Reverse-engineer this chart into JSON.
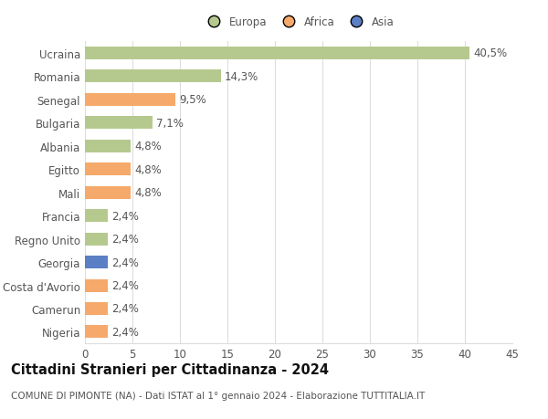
{
  "categories": [
    "Ucraina",
    "Romania",
    "Senegal",
    "Bulgaria",
    "Albania",
    "Egitto",
    "Mali",
    "Francia",
    "Regno Unito",
    "Georgia",
    "Costa d'Avorio",
    "Camerun",
    "Nigeria"
  ],
  "values": [
    40.5,
    14.3,
    9.5,
    7.1,
    4.8,
    4.8,
    4.8,
    2.4,
    2.4,
    2.4,
    2.4,
    2.4,
    2.4
  ],
  "labels": [
    "40,5%",
    "14,3%",
    "9,5%",
    "7,1%",
    "4,8%",
    "4,8%",
    "4,8%",
    "2,4%",
    "2,4%",
    "2,4%",
    "2,4%",
    "2,4%",
    "2,4%"
  ],
  "bar_colors": [
    "#b5c98e",
    "#b5c98e",
    "#f5a96a",
    "#b5c98e",
    "#b5c98e",
    "#f5a96a",
    "#f5a96a",
    "#b5c98e",
    "#b5c98e",
    "#5b7fc4",
    "#f5a96a",
    "#f5a96a",
    "#f5a96a"
  ],
  "legend_labels": [
    "Europa",
    "Africa",
    "Asia"
  ],
  "legend_colors": [
    "#b5c98e",
    "#f5a96a",
    "#5b7fc4"
  ],
  "title": "Cittadini Stranieri per Cittadinanza - 2024",
  "subtitle": "COMUNE DI PIMONTE (NA) - Dati ISTAT al 1° gennaio 2024 - Elaborazione TUTTITALIA.IT",
  "xlim": [
    0,
    45
  ],
  "xticks": [
    0,
    5,
    10,
    15,
    20,
    25,
    30,
    35,
    40,
    45
  ],
  "background_color": "#ffffff",
  "grid_color": "#dddddd",
  "bar_height": 0.55,
  "label_fontsize": 8.5,
  "tick_fontsize": 8.5,
  "title_fontsize": 10.5,
  "subtitle_fontsize": 7.5
}
